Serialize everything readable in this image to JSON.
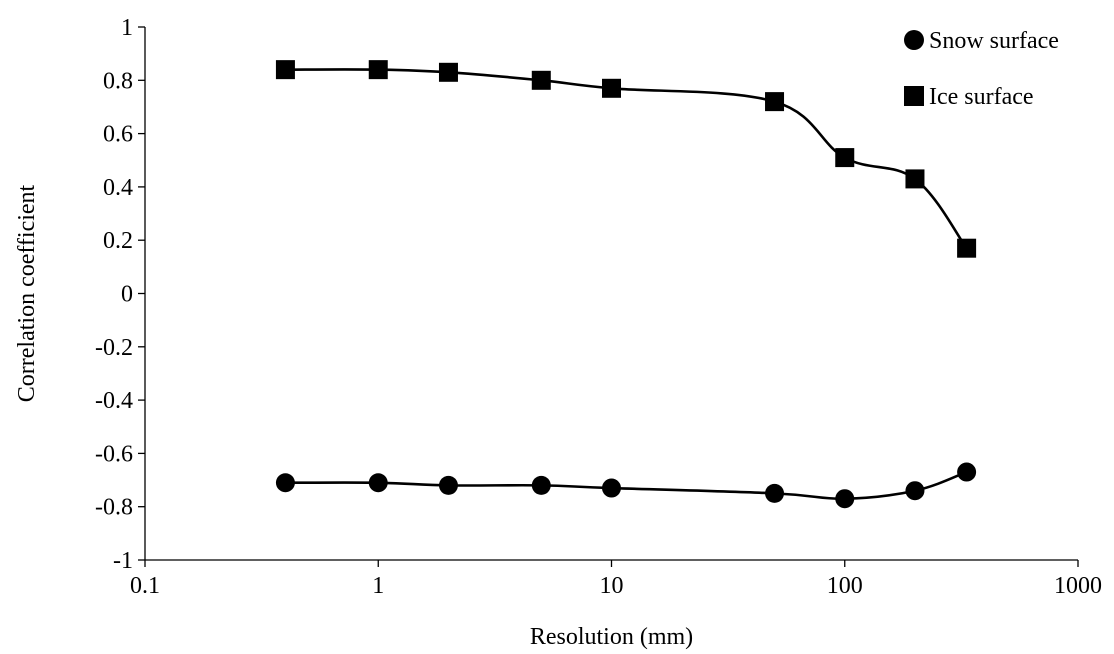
{
  "chart_data": {
    "type": "scatter",
    "title": "",
    "xlabel": "Resolution (mm)",
    "ylabel": "Correlation coefficient",
    "xscale": "log",
    "xlim": [
      0.1,
      1000
    ],
    "ylim": [
      -1,
      1
    ],
    "grid": false,
    "legend_position": "top-right",
    "x_ticks": [
      0.1,
      1,
      10,
      100,
      1000
    ],
    "x_tick_labels": [
      "0.1",
      "1",
      "10",
      "100",
      "1000"
    ],
    "y_ticks": [
      1,
      0.8,
      0.6,
      0.4,
      0.2,
      0,
      -0.2,
      -0.4,
      -0.6,
      -0.8,
      -1
    ],
    "y_tick_labels": [
      "1",
      "0.8",
      "0.6",
      "0.4",
      "0.2",
      "0",
      "-0.2",
      "-0.4",
      "-0.6",
      "-0.8",
      "-1"
    ],
    "series": [
      {
        "name": "Snow surface",
        "marker": "circle",
        "color": "#000000",
        "x": [
          0.4,
          1,
          2,
          5,
          10,
          50,
          100,
          200,
          333
        ],
        "y": [
          -0.71,
          -0.71,
          -0.72,
          -0.72,
          -0.73,
          -0.75,
          -0.77,
          -0.74,
          -0.67
        ]
      },
      {
        "name": "Ice surface",
        "marker": "square",
        "color": "#000000",
        "x": [
          0.4,
          1,
          2,
          5,
          10,
          50,
          100,
          200,
          333
        ],
        "y": [
          0.84,
          0.84,
          0.83,
          0.8,
          0.77,
          0.72,
          0.51,
          0.43,
          0.17
        ]
      }
    ]
  }
}
